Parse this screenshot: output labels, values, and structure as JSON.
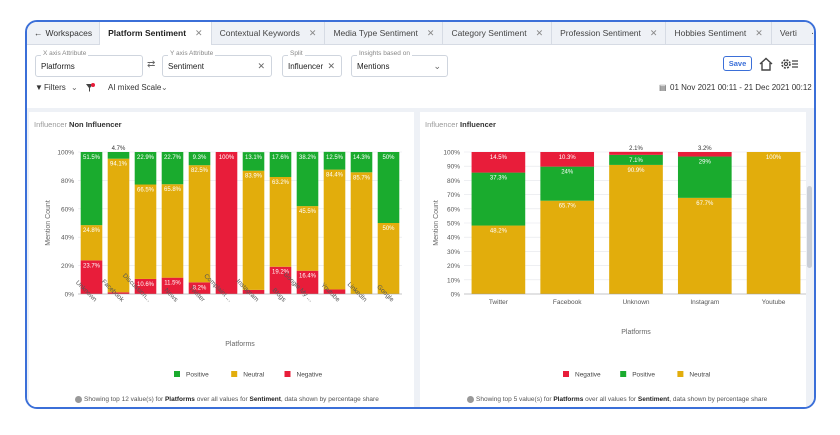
{
  "tabs": {
    "back_label": "Workspaces",
    "items": [
      {
        "label": "Platform Sentiment",
        "active": true
      },
      {
        "label": "Contextual Keywords",
        "active": false
      },
      {
        "label": "Media Type Sentiment",
        "active": false
      },
      {
        "label": "Category Sentiment",
        "active": false
      },
      {
        "label": "Profession Sentiment",
        "active": false
      },
      {
        "label": "Hobbies Sentiment",
        "active": false
      },
      {
        "label": "Verti",
        "active": false
      }
    ],
    "more": "···",
    "add": "+"
  },
  "controls": {
    "x_label": "X axis Attribute",
    "x_value": "Platforms",
    "y_label": "Y axis Attribute",
    "y_value": "Sentiment",
    "split_label": "Split",
    "split_value": "Influencer",
    "insights_label": "Insights based on",
    "insights_value": "Mentions",
    "save": "Save"
  },
  "filters": {
    "label": "Filters",
    "scale": "AI mixed Scale",
    "date_range": "01 Nov 2021 00:11 - 21 Dec 2021 00:12"
  },
  "left_panel": {
    "title_key": "Influencer",
    "title_value": "Non Influencer",
    "footer_pre": "Showing top 12 value(s) for ",
    "footer_b1": "Platforms",
    "footer_mid": " over all values for ",
    "footer_b2": "Sentiment",
    "footer_post": ", data shown by percentage share"
  },
  "right_panel": {
    "title_key": "Influencer",
    "title_value": "Influencer",
    "footer_pre": "Showing top 5 value(s) for ",
    "footer_b1": "Platforms",
    "footer_mid": " over all values for ",
    "footer_b2": "Sentiment",
    "footer_post": ", data shown by percentage share"
  },
  "colors": {
    "positive": "#1aab2e",
    "neutral": "#e2ad0c",
    "negative": "#e81d3a"
  },
  "chart_data": [
    {
      "type": "bar",
      "stacked": true,
      "ylabel": "Mention Count",
      "xlabel": "Platforms",
      "yticks": [
        "0%",
        "20%",
        "40%",
        "60%",
        "80%",
        "100%"
      ],
      "categories": [
        "Unknown",
        "Facebook",
        "Discussion...",
        "News",
        "Twitter",
        "Complaint ...",
        "Instagram",
        "Blogs",
        "Google My ...",
        "Youtube",
        "LinkedIn",
        "Google"
      ],
      "series": [
        {
          "name": "Negative",
          "values": [
            23.7,
            1.2,
            10.6,
            11.5,
            8.2,
            100,
            2.9,
            19.2,
            16.4,
            3.2,
            0,
            0
          ],
          "labels": [
            "23.7%",
            "",
            "10.6%",
            "11.5%",
            "8.2%",
            "100%",
            "",
            "19.2%",
            "16.4%",
            "",
            "",
            ""
          ]
        },
        {
          "name": "Neutral",
          "values": [
            24.8,
            94.1,
            66.5,
            65.8,
            82.5,
            0,
            83.9,
            63.2,
            45.5,
            84.4,
            85.7,
            50
          ],
          "labels": [
            "24.8%",
            "94.1%",
            "66.5%",
            "65.8%",
            "82.5%",
            "",
            "83.9%",
            "63.2%",
            "45.5%",
            "84.4%",
            "85.7%",
            "50%"
          ]
        },
        {
          "name": "Positive",
          "values": [
            51.5,
            4.7,
            22.9,
            22.7,
            9.3,
            0,
            13.1,
            17.6,
            38.2,
            12.5,
            14.3,
            50
          ],
          "labels": [
            "51.5%",
            "4.7%",
            "22.9%",
            "22.7%",
            "9.3%",
            "",
            "13.1%",
            "17.6%",
            "38.2%",
            "12.5%",
            "14.3%",
            "50%"
          ]
        }
      ],
      "legend": [
        "Positive",
        "Neutral",
        "Negative"
      ],
      "legend_position": "bottom",
      "ylim": [
        0,
        100
      ]
    },
    {
      "type": "bar",
      "stacked": true,
      "ylabel": "Mention Count",
      "xlabel": "Platforms",
      "yticks": [
        "0%",
        "10%",
        "20%",
        "30%",
        "40%",
        "50%",
        "60%",
        "70%",
        "80%",
        "90%",
        "100%"
      ],
      "categories": [
        "Twitter",
        "Facebook",
        "Unknown",
        "Instagram",
        "Youtube"
      ],
      "series": [
        {
          "name": "Neutral",
          "values": [
            48.2,
            65.7,
            90.9,
            67.7,
            100
          ],
          "labels": [
            "48.2%",
            "65.7%",
            "90.9%",
            "67.7%",
            "100%"
          ]
        },
        {
          "name": "Positive",
          "values": [
            37.3,
            24,
            7.1,
            29.1,
            0
          ],
          "labels": [
            "37.3%",
            "24%",
            "7.1%",
            "29%",
            ""
          ]
        },
        {
          "name": "Negative",
          "values": [
            14.5,
            10.3,
            2.1,
            3.2,
            0
          ],
          "labels": [
            "14.5%",
            "10.3%",
            "2.1%",
            "3.2%",
            ""
          ]
        }
      ],
      "legend": [
        "Negative",
        "Positive",
        "Neutral"
      ],
      "legend_position": "bottom",
      "ylim": [
        0,
        100
      ]
    }
  ]
}
